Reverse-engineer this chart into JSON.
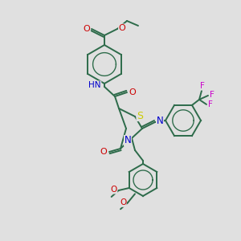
{
  "background_color": "#e0e0e0",
  "bond_color": "#2d6b4a",
  "atoms": {
    "S": {
      "color": "#cccc00"
    },
    "N": {
      "color": "#0000cc"
    },
    "O": {
      "color": "#cc0000"
    },
    "F": {
      "color": "#cc00cc"
    },
    "C": {
      "color": "#2d6b4a"
    },
    "H": {
      "color": "#888888"
    }
  },
  "figsize": [
    3.0,
    3.0
  ],
  "dpi": 100
}
